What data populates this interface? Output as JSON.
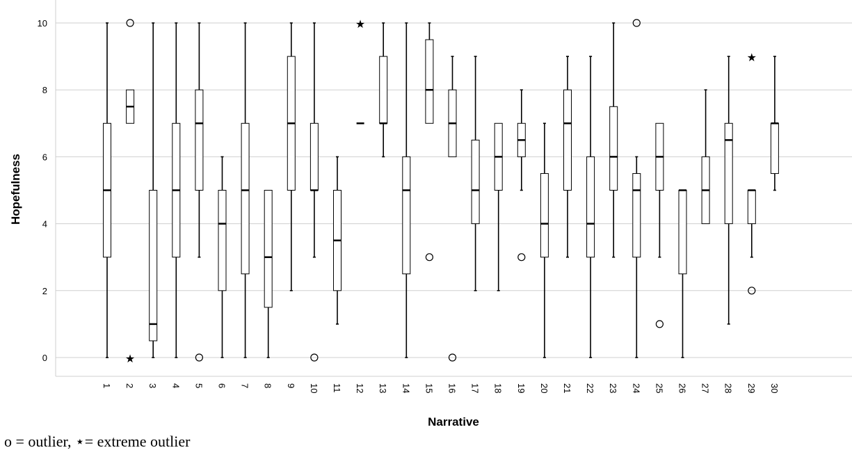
{
  "chart_data": {
    "type": "boxplot",
    "xlabel": "Narrative",
    "ylabel": "Hopefulness",
    "ylim": [
      0,
      10
    ],
    "yticks": [
      0,
      2,
      4,
      6,
      8,
      10
    ],
    "grid": "horizontal",
    "categories": [
      "1",
      "2",
      "3",
      "4",
      "5",
      "6",
      "7",
      "8",
      "9",
      "10",
      "11",
      "12",
      "13",
      "14",
      "15",
      "16",
      "17",
      "18",
      "19",
      "20",
      "21",
      "22",
      "23",
      "24",
      "25",
      "26",
      "27",
      "28",
      "29",
      "30"
    ],
    "boxes": [
      {
        "category": "1",
        "whisker_low": 0,
        "q1": 3,
        "median": 5,
        "q3": 7,
        "whisker_high": 10,
        "outliers": [],
        "extremes": []
      },
      {
        "category": "2",
        "whisker_low": 7,
        "q1": 7,
        "median": 7.5,
        "q3": 8,
        "whisker_high": 8,
        "outliers": [
          10
        ],
        "extremes": [
          0
        ]
      },
      {
        "category": "3",
        "whisker_low": 0,
        "q1": 0.5,
        "median": 1,
        "q3": 5,
        "whisker_high": 10,
        "outliers": [],
        "extremes": []
      },
      {
        "category": "4",
        "whisker_low": 0,
        "q1": 3,
        "median": 5,
        "q3": 7,
        "whisker_high": 10,
        "outliers": [],
        "extremes": []
      },
      {
        "category": "5",
        "whisker_low": 3,
        "q1": 5,
        "median": 7,
        "q3": 8,
        "whisker_high": 10,
        "outliers": [
          0
        ],
        "extremes": []
      },
      {
        "category": "6",
        "whisker_low": 0,
        "q1": 2,
        "median": 4,
        "q3": 5,
        "whisker_high": 6,
        "outliers": [],
        "extremes": []
      },
      {
        "category": "7",
        "whisker_low": 0,
        "q1": 2.5,
        "median": 5,
        "q3": 7,
        "whisker_high": 10,
        "outliers": [],
        "extremes": []
      },
      {
        "category": "8",
        "whisker_low": 0,
        "q1": 1.5,
        "median": 3,
        "q3": 5,
        "whisker_high": 5,
        "outliers": [],
        "extremes": []
      },
      {
        "category": "9",
        "whisker_low": 2,
        "q1": 5,
        "median": 7,
        "q3": 9,
        "whisker_high": 10,
        "outliers": [],
        "extremes": []
      },
      {
        "category": "10",
        "whisker_low": 3,
        "q1": 5,
        "median": 5,
        "q3": 7,
        "whisker_high": 10,
        "outliers": [
          0
        ],
        "extremes": []
      },
      {
        "category": "11",
        "whisker_low": 1,
        "q1": 2,
        "median": 3.5,
        "q3": 5,
        "whisker_high": 6,
        "outliers": [],
        "extremes": []
      },
      {
        "category": "12",
        "whisker_low": 7,
        "q1": 7,
        "median": 7,
        "q3": 7,
        "whisker_high": 7,
        "outliers": [],
        "extremes": [
          10
        ]
      },
      {
        "category": "13",
        "whisker_low": 6,
        "q1": 7,
        "median": 7,
        "q3": 9,
        "whisker_high": 10,
        "outliers": [],
        "extremes": []
      },
      {
        "category": "14",
        "whisker_low": 0,
        "q1": 2.5,
        "median": 5,
        "q3": 6,
        "whisker_high": 10,
        "outliers": [],
        "extremes": []
      },
      {
        "category": "15",
        "whisker_low": 7,
        "q1": 7,
        "median": 8,
        "q3": 9.5,
        "whisker_high": 10,
        "outliers": [
          3
        ],
        "extremes": []
      },
      {
        "category": "16",
        "whisker_low": 6,
        "q1": 6,
        "median": 7,
        "q3": 8,
        "whisker_high": 9,
        "outliers": [
          0
        ],
        "extremes": []
      },
      {
        "category": "17",
        "whisker_low": 2,
        "q1": 4,
        "median": 5,
        "q3": 6.5,
        "whisker_high": 9,
        "outliers": [],
        "extremes": []
      },
      {
        "category": "18",
        "whisker_low": 2,
        "q1": 5,
        "median": 6,
        "q3": 7,
        "whisker_high": 7,
        "outliers": [],
        "extremes": []
      },
      {
        "category": "19",
        "whisker_low": 5,
        "q1": 6,
        "median": 6.5,
        "q3": 7,
        "whisker_high": 8,
        "outliers": [
          3
        ],
        "extremes": []
      },
      {
        "category": "20",
        "whisker_low": 0,
        "q1": 3,
        "median": 4,
        "q3": 5.5,
        "whisker_high": 7,
        "outliers": [],
        "extremes": []
      },
      {
        "category": "21",
        "whisker_low": 3,
        "q1": 5,
        "median": 7,
        "q3": 8,
        "whisker_high": 9,
        "outliers": [],
        "extremes": []
      },
      {
        "category": "22",
        "whisker_low": 0,
        "q1": 3,
        "median": 4,
        "q3": 6,
        "whisker_high": 9,
        "outliers": [],
        "extremes": []
      },
      {
        "category": "23",
        "whisker_low": 3,
        "q1": 5,
        "median": 6,
        "q3": 7.5,
        "whisker_high": 10,
        "outliers": [],
        "extremes": []
      },
      {
        "category": "24",
        "whisker_low": 0,
        "q1": 3,
        "median": 5,
        "q3": 5.5,
        "whisker_high": 6,
        "outliers": [
          10
        ],
        "extremes": []
      },
      {
        "category": "25",
        "whisker_low": 3,
        "q1": 5,
        "median": 6,
        "q3": 7,
        "whisker_high": 7,
        "outliers": [
          1
        ],
        "extremes": []
      },
      {
        "category": "26",
        "whisker_low": 0,
        "q1": 2.5,
        "median": 5,
        "q3": 5,
        "whisker_high": 5,
        "outliers": [],
        "extremes": []
      },
      {
        "category": "27",
        "whisker_low": 4,
        "q1": 4,
        "median": 5,
        "q3": 6,
        "whisker_high": 8,
        "outliers": [],
        "extremes": []
      },
      {
        "category": "28",
        "whisker_low": 1,
        "q1": 4,
        "median": 6.5,
        "q3": 7,
        "whisker_high": 9,
        "outliers": [],
        "extremes": []
      },
      {
        "category": "29",
        "whisker_low": 3,
        "q1": 4,
        "median": 5,
        "q3": 5,
        "whisker_high": 5,
        "outliers": [
          2
        ],
        "extremes": [
          9
        ]
      },
      {
        "category": "30",
        "whisker_low": 5,
        "q1": 5.5,
        "median": 7,
        "q3": 7,
        "whisker_high": 9,
        "outliers": [],
        "extremes": []
      }
    ],
    "colors": {
      "grid": "#cfcfcf",
      "box_fill": "#ffffff",
      "stroke": "#000000"
    }
  },
  "caption": "o = outlier, ⋆= extreme outlier"
}
